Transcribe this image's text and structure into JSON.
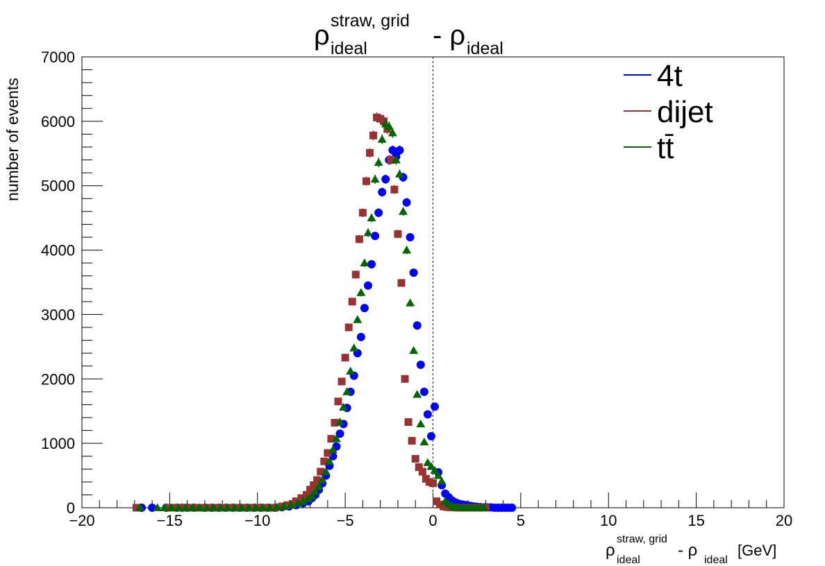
{
  "chart_data": {
    "type": "scatter",
    "title": {
      "main": "ρ",
      "sup": "straw, grid",
      "sub": "ideal",
      "mid": "- ρ",
      "sub2": "ideal"
    },
    "xlabel": {
      "main": "ρ",
      "sup": "straw, grid",
      "sub": "ideal",
      "mid": "-  ρ",
      "sub2": "ideal",
      "unit": "[GeV]"
    },
    "ylabel": "number of events",
    "xlim": [
      -20,
      20
    ],
    "ylim": [
      0,
      7000
    ],
    "xticks": [
      -20,
      -15,
      -10,
      -5,
      0,
      5,
      10,
      15,
      20
    ],
    "xtick_labels": [
      "−20",
      "−15",
      "−10",
      "−5",
      "0",
      "5",
      "10",
      "15",
      "20"
    ],
    "yticks": [
      0,
      1000,
      2000,
      3000,
      4000,
      5000,
      6000,
      7000
    ],
    "ytick_labels": [
      "0",
      "1000",
      "2000",
      "3000",
      "4000",
      "5000",
      "6000",
      "7000"
    ],
    "reference_line_x": 0,
    "legend_position": "top-right",
    "series": [
      {
        "name": "4t",
        "marker": "circle",
        "color": "#0000ff",
        "x": [
          -16.6,
          -16.0,
          -15.2,
          -14.6,
          -14.3,
          -14.0,
          -13.6,
          -13.0,
          -12.6,
          -12.2,
          -11.8,
          -11.4,
          -11.0,
          -10.6,
          -10.2,
          -9.8,
          -9.4,
          -9.0,
          -8.6,
          -8.2,
          -7.8,
          -7.4,
          -7.1,
          -6.9,
          -6.7,
          -6.5,
          -6.3,
          -6.1,
          -5.9,
          -5.7,
          -5.5,
          -5.3,
          -5.1,
          -4.9,
          -4.7,
          -4.5,
          -4.3,
          -4.1,
          -3.9,
          -3.7,
          -3.5,
          -3.3,
          -3.1,
          -2.9,
          -2.7,
          -2.5,
          -2.3,
          -2.1,
          -1.9,
          -1.7,
          -1.5,
          -1.3,
          -1.1,
          -0.9,
          -0.7,
          -0.5,
          -0.3,
          -0.1,
          0.1,
          0.3,
          0.5,
          0.7,
          0.9,
          1.1,
          1.3,
          1.5,
          1.7,
          1.9,
          2.1,
          2.3,
          2.5,
          2.7,
          2.9,
          3.1,
          3.3,
          3.5,
          3.7,
          3.9,
          4.1,
          4.3,
          4.5
        ],
        "y": [
          0,
          0,
          0,
          0,
          0,
          0,
          0,
          0,
          0,
          0,
          0,
          0,
          0,
          0,
          0,
          0,
          0,
          0,
          10,
          20,
          40,
          70,
          100,
          150,
          200,
          280,
          380,
          500,
          650,
          800,
          950,
          1150,
          1300,
          1550,
          1800,
          2050,
          2400,
          2650,
          3100,
          3450,
          3780,
          4220,
          4580,
          4900,
          5100,
          5400,
          5550,
          5450,
          5550,
          5130,
          4740,
          4200,
          3650,
          2830,
          2220,
          1800,
          1450,
          1110,
          1570,
          550,
          350,
          220,
          160,
          110,
          80,
          60,
          50,
          40,
          30,
          20,
          15,
          10,
          5,
          5,
          5,
          0,
          0,
          0,
          0,
          0,
          0
        ]
      },
      {
        "name": "dijet",
        "marker": "square",
        "color": "#993333",
        "x": [
          -16.9,
          -15.1,
          -14.9,
          -14.5,
          -14.3,
          -14.0,
          -13.8,
          -13.4,
          -13.0,
          -12.6,
          -12.2,
          -11.8,
          -11.4,
          -11.0,
          -10.6,
          -10.2,
          -9.8,
          -9.4,
          -9.0,
          -8.6,
          -8.3,
          -8.0,
          -7.8,
          -7.5,
          -7.2,
          -7.0,
          -6.8,
          -6.6,
          -6.4,
          -6.2,
          -6.0,
          -5.8,
          -5.6,
          -5.4,
          -5.2,
          -5.0,
          -4.8,
          -4.6,
          -4.4,
          -4.2,
          -4.0,
          -3.8,
          -3.6,
          -3.4,
          -3.2,
          -3.0,
          -2.8,
          -2.6,
          -2.4,
          -2.2,
          -2.0,
          -1.8,
          -1.6,
          -1.4,
          -1.2,
          -1.0,
          -0.8,
          -0.6,
          -0.4,
          -0.2,
          0.0,
          0.2,
          0.4,
          0.6,
          0.8,
          1.0,
          1.2,
          1.4,
          1.6,
          1.8,
          2.0,
          2.2,
          2.4,
          2.6,
          2.8,
          3.0
        ],
        "y": [
          0,
          0,
          0,
          0,
          0,
          0,
          0,
          0,
          0,
          0,
          0,
          0,
          0,
          0,
          0,
          0,
          0,
          0,
          0,
          20,
          40,
          60,
          100,
          150,
          200,
          280,
          350,
          430,
          560,
          720,
          850,
          1070,
          1320,
          1650,
          1960,
          2330,
          2800,
          3200,
          3620,
          4170,
          4580,
          5070,
          5510,
          5780,
          6060,
          6040,
          6000,
          5880,
          5400,
          4940,
          4250,
          3490,
          2000,
          1330,
          1040,
          760,
          630,
          560,
          450,
          400,
          380,
          100,
          50,
          20,
          10,
          5,
          5,
          0,
          0,
          0,
          0,
          0,
          0,
          0,
          0,
          0
        ]
      },
      {
        "name": "tt̄",
        "marker": "triangle",
        "color": "#006600",
        "x": [
          -16.7,
          -15.7,
          -15.3,
          -14.9,
          -14.5,
          -14.1,
          -13.7,
          -13.3,
          -12.9,
          -12.5,
          -12.1,
          -11.7,
          -11.3,
          -10.9,
          -10.5,
          -10.1,
          -9.7,
          -9.3,
          -8.9,
          -8.5,
          -8.1,
          -7.7,
          -7.4,
          -7.1,
          -6.9,
          -6.7,
          -6.5,
          -6.3,
          -6.1,
          -5.9,
          -5.7,
          -5.5,
          -5.3,
          -5.1,
          -4.9,
          -4.7,
          -4.5,
          -4.3,
          -4.1,
          -3.9,
          -3.7,
          -3.5,
          -3.3,
          -3.1,
          -2.9,
          -2.7,
          -2.5,
          -2.3,
          -2.1,
          -1.9,
          -1.7,
          -1.5,
          -1.3,
          -1.1,
          -0.9,
          -0.7,
          -0.5,
          -0.3,
          -0.1,
          0.1,
          0.3,
          0.5,
          0.7,
          0.9,
          1.1,
          1.3,
          1.5,
          1.7,
          1.9,
          2.1,
          2.3,
          2.5,
          2.7,
          2.9
        ],
        "y": [
          0,
          0,
          0,
          0,
          0,
          0,
          0,
          0,
          0,
          0,
          0,
          0,
          0,
          0,
          0,
          0,
          0,
          0,
          10,
          20,
          40,
          70,
          100,
          140,
          180,
          250,
          330,
          430,
          560,
          720,
          900,
          1070,
          1330,
          1560,
          1800,
          2120,
          2480,
          2920,
          3340,
          3800,
          4270,
          4500,
          5100,
          5360,
          5720,
          5960,
          5920,
          5820,
          5400,
          5180,
          4600,
          4000,
          3180,
          2440,
          1760,
          1300,
          1020,
          700,
          640,
          580,
          500,
          410,
          100,
          60,
          30,
          10,
          5,
          0,
          0,
          0,
          0,
          0,
          0,
          0
        ]
      }
    ]
  }
}
